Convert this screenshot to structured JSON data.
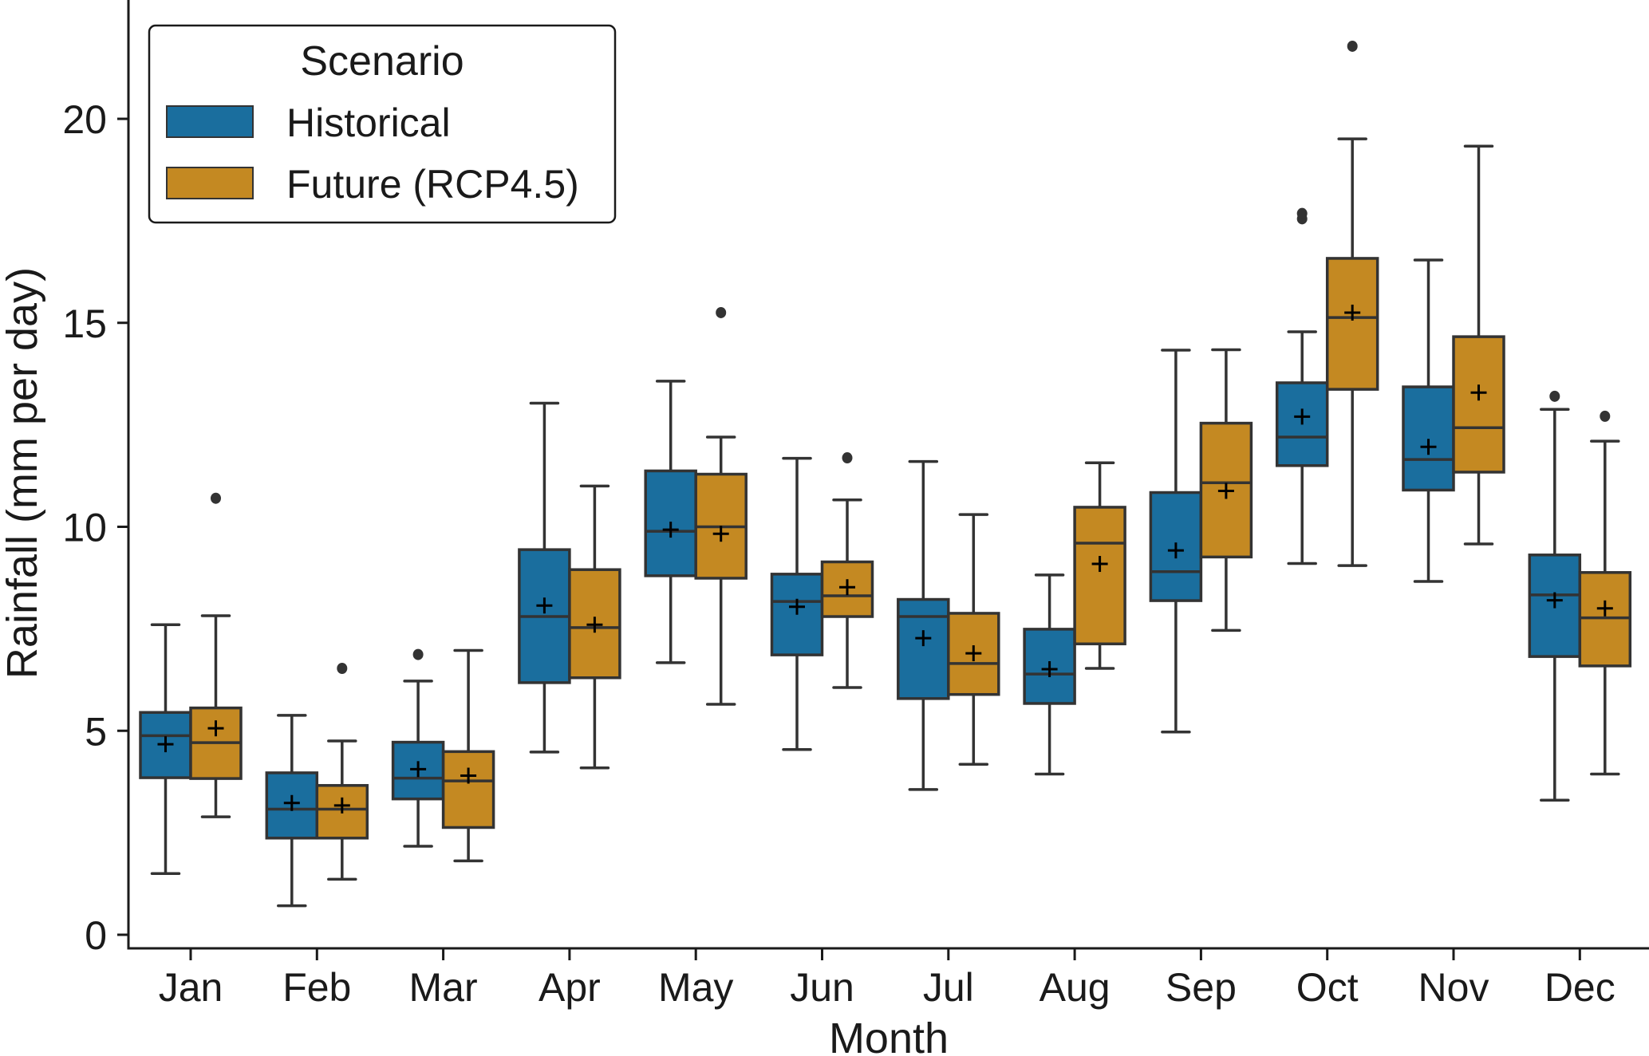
{
  "chart_data": {
    "type": "box",
    "title": "",
    "xlabel": "Month",
    "ylabel": "Rainfall (mm per day)",
    "ylim": [
      0,
      22.5
    ],
    "yticks": [
      0,
      5,
      10,
      15,
      20
    ],
    "ytick_labels": [
      "0",
      "5",
      "10",
      "15",
      "20"
    ],
    "grid": false,
    "categories": [
      "Jan",
      "Feb",
      "Mar",
      "Apr",
      "May",
      "Jun",
      "Jul",
      "Aug",
      "Sep",
      "Oct",
      "Nov",
      "Dec"
    ],
    "legend": {
      "title": "Scenario",
      "placement": "top-left",
      "entries": [
        "Historical",
        "Future (RCP4.5)"
      ]
    },
    "colors": {
      "Historical": "#1A6E9E",
      "Future (RCP4.5)": "#C48922",
      "edge": "#333333"
    },
    "series": [
      {
        "name": "Historical",
        "boxes": [
          {
            "whislo": 1.5,
            "q1": 3.85,
            "med": 4.88,
            "q3": 5.45,
            "whishi": 7.6,
            "mean": 4.67,
            "fliers": []
          },
          {
            "whislo": 0.71,
            "q1": 2.37,
            "med": 3.08,
            "q3": 3.97,
            "whishi": 5.38,
            "mean": 3.23,
            "fliers": []
          },
          {
            "whislo": 2.17,
            "q1": 3.33,
            "med": 3.84,
            "q3": 4.72,
            "whishi": 6.22,
            "mean": 4.06,
            "fliers": [
              6.87
            ]
          },
          {
            "whislo": 4.48,
            "q1": 6.18,
            "med": 7.8,
            "q3": 9.44,
            "whishi": 13.03,
            "mean": 8.07,
            "fliers": []
          },
          {
            "whislo": 6.67,
            "q1": 8.8,
            "med": 9.89,
            "q3": 11.37,
            "whishi": 13.57,
            "mean": 9.93,
            "fliers": []
          },
          {
            "whislo": 4.54,
            "q1": 6.86,
            "med": 8.17,
            "q3": 8.84,
            "whishi": 11.68,
            "mean": 8.04,
            "fliers": []
          },
          {
            "whislo": 3.56,
            "q1": 5.79,
            "med": 7.8,
            "q3": 8.22,
            "whishi": 11.6,
            "mean": 7.27,
            "fliers": []
          },
          {
            "whislo": 3.94,
            "q1": 5.67,
            "med": 6.39,
            "q3": 7.49,
            "whishi": 8.82,
            "mean": 6.51,
            "fliers": []
          },
          {
            "whislo": 4.97,
            "q1": 8.19,
            "med": 8.9,
            "q3": 10.84,
            "whishi": 14.33,
            "mean": 9.42,
            "fliers": []
          },
          {
            "whislo": 9.1,
            "q1": 11.5,
            "med": 12.2,
            "q3": 13.53,
            "whishi": 14.78,
            "mean": 12.7,
            "fliers": [
              17.55,
              17.68
            ]
          },
          {
            "whislo": 8.66,
            "q1": 10.9,
            "med": 11.65,
            "q3": 13.43,
            "whishi": 16.54,
            "mean": 11.96,
            "fliers": []
          },
          {
            "whislo": 3.3,
            "q1": 6.82,
            "med": 8.33,
            "q3": 9.31,
            "whishi": 12.88,
            "mean": 8.2,
            "fliers": [
              13.2
            ]
          }
        ]
      },
      {
        "name": "Future (RCP4.5)",
        "boxes": [
          {
            "whislo": 2.89,
            "q1": 3.83,
            "med": 4.71,
            "q3": 5.56,
            "whishi": 7.82,
            "mean": 5.06,
            "fliers": [
              10.7
            ]
          },
          {
            "whislo": 1.36,
            "q1": 2.37,
            "med": 3.08,
            "q3": 3.66,
            "whishi": 4.75,
            "mean": 3.17,
            "fliers": [
              6.53
            ]
          },
          {
            "whislo": 1.81,
            "q1": 2.63,
            "med": 3.77,
            "q3": 4.49,
            "whishi": 6.97,
            "mean": 3.9,
            "fliers": []
          },
          {
            "whislo": 4.09,
            "q1": 6.3,
            "med": 7.53,
            "q3": 8.95,
            "whishi": 11.0,
            "mean": 7.6,
            "fliers": []
          },
          {
            "whislo": 5.65,
            "q1": 8.74,
            "med": 10.0,
            "q3": 11.29,
            "whishi": 12.2,
            "mean": 9.83,
            "fliers": [
              15.25
            ]
          },
          {
            "whislo": 6.06,
            "q1": 7.8,
            "med": 8.31,
            "q3": 9.14,
            "whishi": 10.66,
            "mean": 8.52,
            "fliers": [
              11.69
            ]
          },
          {
            "whislo": 4.18,
            "q1": 5.89,
            "med": 6.65,
            "q3": 7.88,
            "whishi": 10.3,
            "mean": 6.9,
            "fliers": []
          },
          {
            "whislo": 6.53,
            "q1": 7.13,
            "med": 9.6,
            "q3": 10.48,
            "whishi": 11.57,
            "mean": 9.09,
            "fliers": []
          },
          {
            "whislo": 7.46,
            "q1": 9.26,
            "med": 11.08,
            "q3": 12.54,
            "whishi": 14.34,
            "mean": 10.88,
            "fliers": []
          },
          {
            "whislo": 9.05,
            "q1": 13.37,
            "med": 15.13,
            "q3": 16.58,
            "whishi": 19.51,
            "mean": 15.25,
            "fliers": [
              21.78
            ]
          },
          {
            "whislo": 9.58,
            "q1": 11.34,
            "med": 12.43,
            "q3": 14.66,
            "whishi": 19.33,
            "mean": 13.29,
            "fliers": []
          },
          {
            "whislo": 3.94,
            "q1": 6.59,
            "med": 7.77,
            "q3": 8.88,
            "whishi": 12.1,
            "mean": 8.0,
            "fliers": [
              12.71
            ]
          }
        ]
      }
    ]
  }
}
